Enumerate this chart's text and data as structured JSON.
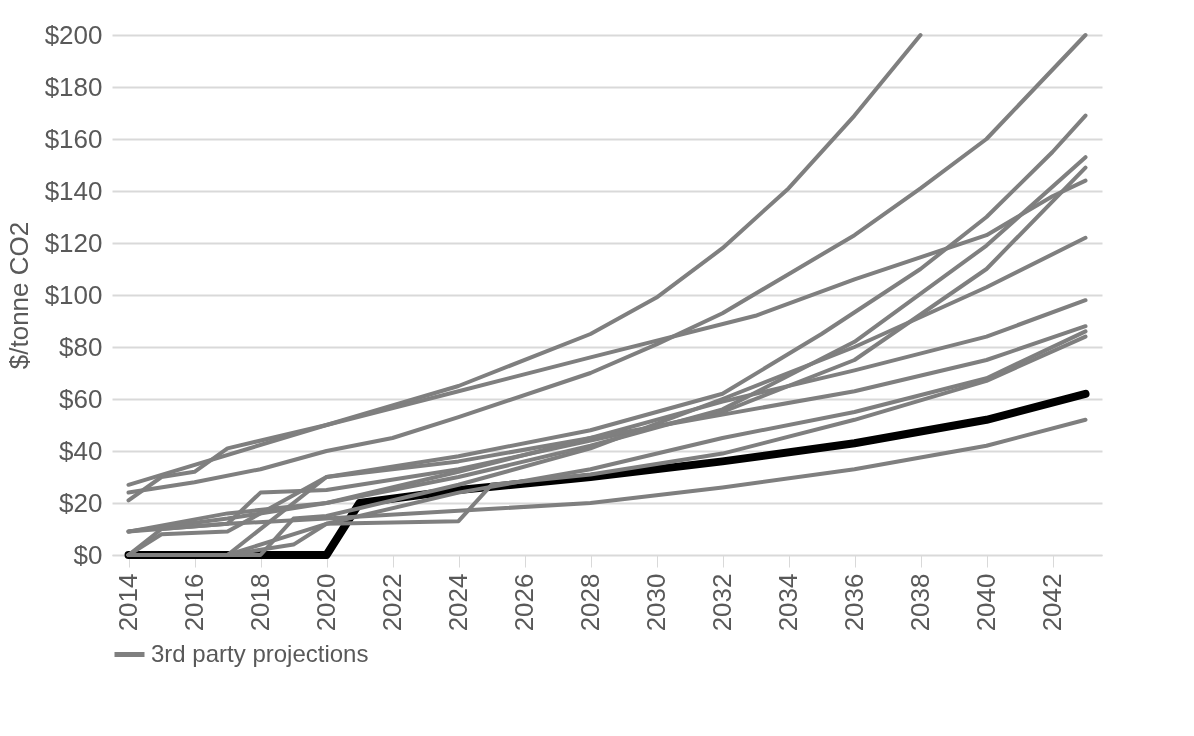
{
  "chart_data": {
    "type": "line",
    "ylabel": "$/tonne CO2",
    "xlim": [
      2013.5,
      2043.5
    ],
    "xticks": [
      2014,
      2016,
      2018,
      2020,
      2022,
      2024,
      2026,
      2028,
      2030,
      2032,
      2034,
      2036,
      2038,
      2040,
      2042
    ],
    "ylim": [
      0,
      200
    ],
    "yticks": [
      {
        "value": 0,
        "label": "$0"
      },
      {
        "value": 20,
        "label": "$20"
      },
      {
        "value": 40,
        "label": "$40"
      },
      {
        "value": 60,
        "label": "$60"
      },
      {
        "value": 80,
        "label": "$80"
      },
      {
        "value": 100,
        "label": "$100"
      },
      {
        "value": 120,
        "label": "$120"
      },
      {
        "value": 140,
        "label": "$140"
      },
      {
        "value": 160,
        "label": "$160"
      },
      {
        "value": 180,
        "label": "$180"
      },
      {
        "value": 200,
        "label": "$200"
      }
    ],
    "grid": "y",
    "legend": "bottom",
    "line_style": "solid",
    "marker": "none",
    "series": [
      {
        "color": "#000000",
        "x": [
          2014,
          2020,
          2021,
          2024,
          2028,
          2032,
          2036,
          2040,
          2043
        ],
        "values": [
          0,
          0,
          20,
          25,
          30,
          36,
          43,
          52,
          62
        ]
      },
      {
        "name": "3rd party projections",
        "color": "#7f7f7f",
        "x": [
          2014,
          2015,
          2016,
          2017,
          2020,
          2024,
          2028,
          2030,
          2032,
          2034,
          2036,
          2038
        ],
        "values": [
          21,
          30,
          32,
          41,
          50,
          65,
          85,
          99,
          118,
          141,
          169,
          200
        ]
      },
      {
        "color": "#7f7f7f",
        "x": [
          2014,
          2016,
          2018,
          2020,
          2022,
          2024,
          2028,
          2030,
          2032,
          2034,
          2036,
          2038,
          2040,
          2043
        ],
        "values": [
          24,
          28,
          33,
          40,
          45,
          53,
          70,
          81,
          93,
          108,
          123,
          141,
          160,
          200
        ]
      },
      {
        "color": "#7f7f7f",
        "x": [
          2014,
          2020,
          2024,
          2028,
          2033,
          2036,
          2040,
          2042,
          2043
        ],
        "values": [
          27,
          50,
          63,
          76,
          92,
          106,
          123,
          138,
          144
        ]
      },
      {
        "color": "#7f7f7f",
        "x": [
          2014,
          2017,
          2020,
          2024,
          2028,
          2032,
          2035,
          2038,
          2040,
          2042,
          2043
        ],
        "values": [
          0,
          0,
          30,
          38,
          48,
          62,
          85,
          110,
          130,
          155,
          169
        ]
      },
      {
        "color": "#7f7f7f",
        "x": [
          2014,
          2017,
          2020,
          2024,
          2028,
          2032,
          2036,
          2040,
          2043
        ],
        "values": [
          9,
          16,
          20,
          30,
          42,
          56,
          82,
          119,
          153
        ]
      },
      {
        "color": "#7f7f7f",
        "x": [
          2014,
          2015,
          2017,
          2018,
          2020,
          2024,
          2028,
          2032,
          2036,
          2040,
          2043
        ],
        "values": [
          0,
          10,
          12,
          24,
          25,
          33,
          44,
          55,
          75,
          110,
          149
        ]
      },
      {
        "color": "#7f7f7f",
        "x": [
          2014,
          2018,
          2019,
          2020,
          2024,
          2028,
          2032,
          2036,
          2040,
          2043
        ],
        "values": [
          0,
          0,
          14,
          15,
          27,
          41,
          60,
          80,
          103,
          122
        ]
      },
      {
        "color": "#7f7f7f",
        "x": [
          2014,
          2017,
          2020,
          2024,
          2028,
          2032,
          2036,
          2040,
          2043
        ],
        "values": [
          9,
          14,
          20,
          32,
          45,
          59,
          71,
          84,
          98
        ]
      },
      {
        "color": "#7f7f7f",
        "x": [
          2014,
          2015,
          2017,
          2020,
          2024,
          2028,
          2032,
          2036,
          2040,
          2043
        ],
        "values": [
          0,
          8,
          9,
          30,
          36,
          45,
          54,
          63,
          75,
          88
        ]
      },
      {
        "color": "#7f7f7f",
        "x": [
          2014,
          2017,
          2020,
          2024,
          2028,
          2032,
          2036,
          2040,
          2043
        ],
        "values": [
          0,
          0,
          12,
          24,
          33,
          45,
          55,
          68,
          86
        ]
      },
      {
        "color": "#7f7f7f",
        "x": [
          2014,
          2017,
          2019,
          2020,
          2024,
          2025,
          2028,
          2032,
          2036,
          2040,
          2043
        ],
        "values": [
          0,
          0,
          4,
          12,
          13,
          27,
          31,
          39,
          52,
          67,
          84
        ]
      },
      {
        "color": "#7f7f7f",
        "x": [
          2014,
          2017,
          2020,
          2024,
          2028,
          2032,
          2036,
          2040,
          2043
        ],
        "values": [
          9,
          12,
          14,
          17,
          20,
          26,
          33,
          42,
          52
        ]
      }
    ]
  }
}
